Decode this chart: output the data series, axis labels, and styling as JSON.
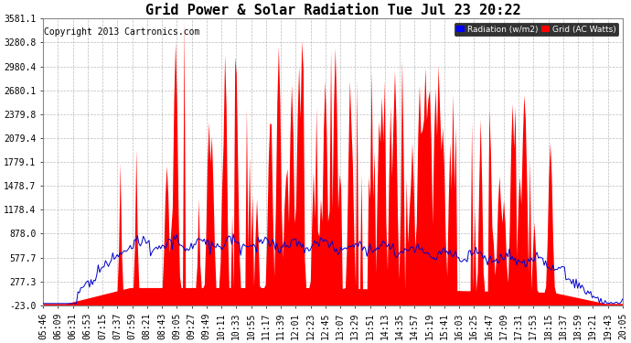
{
  "title": "Grid Power & Solar Radiation Tue Jul 23 20:22",
  "copyright": "Copyright 2013 Cartronics.com",
  "background_color": "#ffffff",
  "plot_bg_color": "#ffffff",
  "grid_color": "#aaaaaa",
  "yticks": [
    -23.0,
    277.3,
    577.7,
    878.0,
    1178.4,
    1478.7,
    1779.1,
    2079.4,
    2379.8,
    2680.1,
    2980.4,
    3280.8,
    3581.1
  ],
  "ylim": [
    -23.0,
    3581.1
  ],
  "legend_radiation_color": "#0000ff",
  "legend_grid_color": "#ff0000",
  "legend_radiation_label": "Radiation (w/m2)",
  "legend_grid_label": "Grid (AC Watts)",
  "solar_color": "#ff0000",
  "grid_line_color": "#0000cc",
  "title_fontsize": 11,
  "copyright_fontsize": 7,
  "tick_fontsize": 7,
  "xtick_labels": [
    "05:46",
    "06:09",
    "06:31",
    "06:53",
    "07:15",
    "07:37",
    "07:59",
    "08:21",
    "08:43",
    "09:05",
    "09:27",
    "09:49",
    "10:11",
    "10:33",
    "10:55",
    "11:17",
    "11:39",
    "12:01",
    "12:23",
    "12:45",
    "13:07",
    "13:29",
    "13:51",
    "14:13",
    "14:35",
    "14:57",
    "15:19",
    "15:41",
    "16:03",
    "16:25",
    "16:47",
    "17:09",
    "17:31",
    "17:53",
    "18:15",
    "18:37",
    "18:59",
    "19:21",
    "19:43",
    "20:05"
  ]
}
